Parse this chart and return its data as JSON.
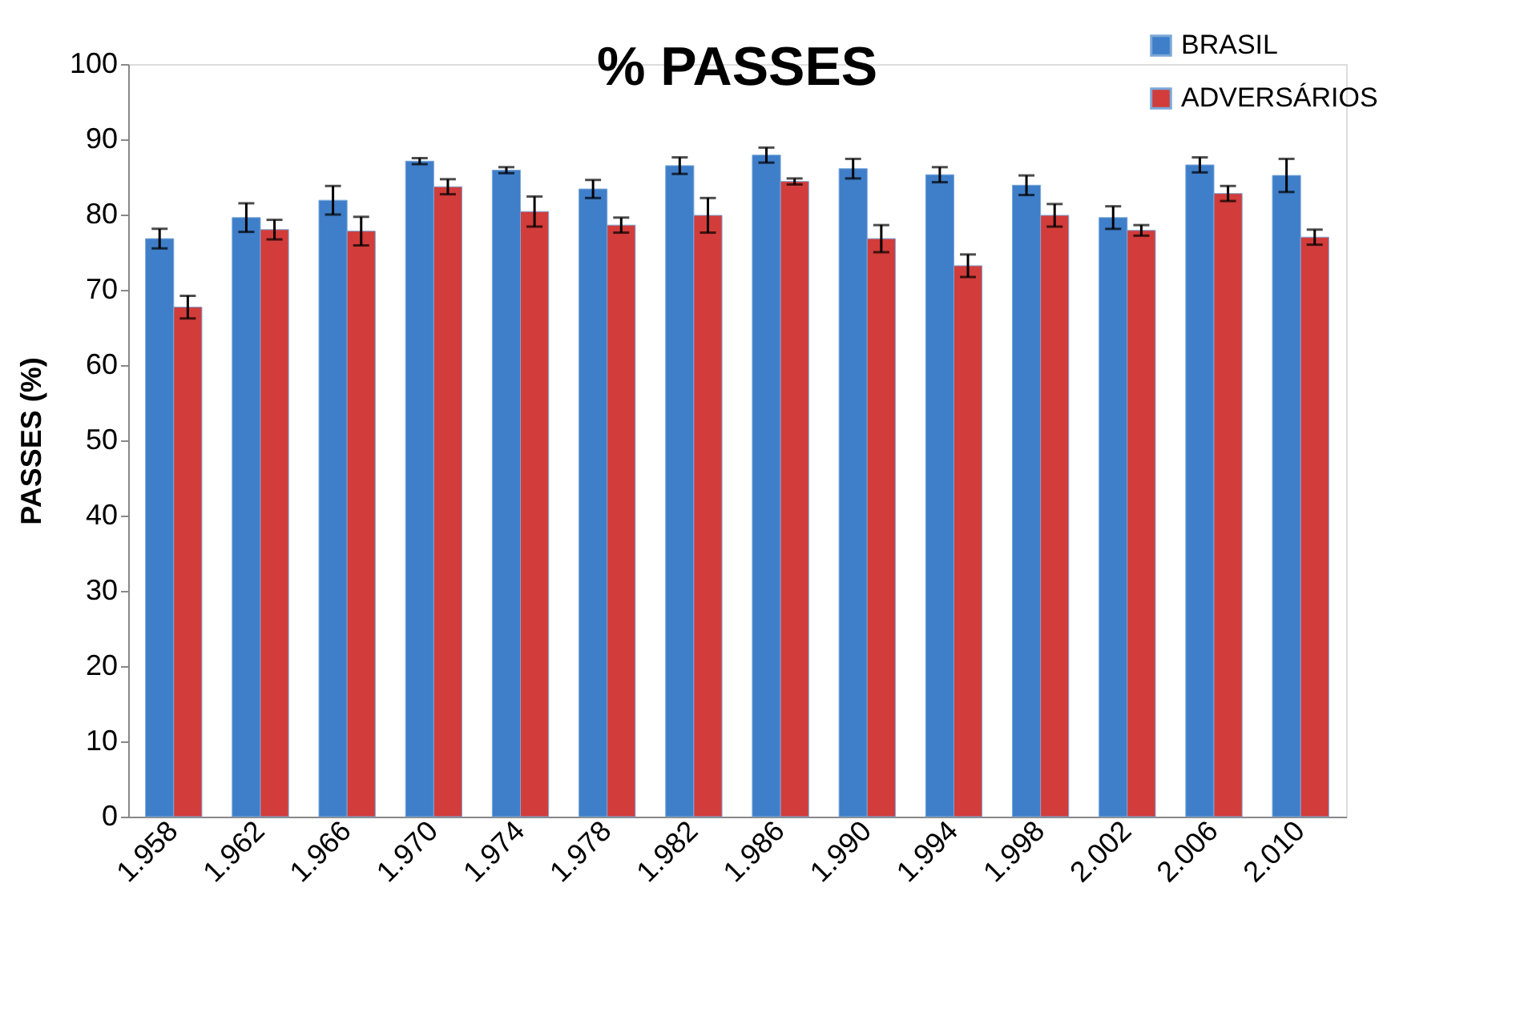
{
  "chart_data": {
    "type": "bar",
    "title": "% PASSES",
    "ylabel": "PASSES  (%)",
    "categories": [
      "1.958",
      "1.962",
      "1.966",
      "1.970",
      "1.974",
      "1.978",
      "1.982",
      "1.986",
      "1.990",
      "1.994",
      "1.998",
      "2.002",
      "2.006",
      "2.010"
    ],
    "series": [
      {
        "name": "BRASIL",
        "color": "#3f7ec9",
        "values": [
          76.8,
          79.6,
          81.9,
          87.1,
          85.9,
          83.4,
          86.5,
          87.9,
          86.1,
          85.3,
          83.9,
          79.6,
          86.6,
          85.2
        ],
        "errors": [
          1.3,
          1.9,
          1.9,
          0.4,
          0.4,
          1.2,
          1.1,
          1.0,
          1.3,
          1.0,
          1.3,
          1.5,
          1.0,
          2.2
        ]
      },
      {
        "name": "ADVERSÁRIOS",
        "color": "#d23c3a",
        "values": [
          67.7,
          78.0,
          77.8,
          83.7,
          80.4,
          78.6,
          79.9,
          84.4,
          76.8,
          73.2,
          79.9,
          77.9,
          82.8,
          77.0
        ],
        "errors": [
          1.5,
          1.3,
          1.9,
          1.0,
          2.0,
          1.0,
          2.3,
          0.4,
          1.8,
          1.5,
          1.5,
          0.7,
          1.0,
          1.0
        ]
      }
    ],
    "ylim": [
      0,
      100
    ],
    "yticks": [
      0,
      10,
      20,
      30,
      40,
      50,
      60,
      70,
      80,
      90,
      100
    ],
    "grid": false,
    "legend": "top right"
  }
}
